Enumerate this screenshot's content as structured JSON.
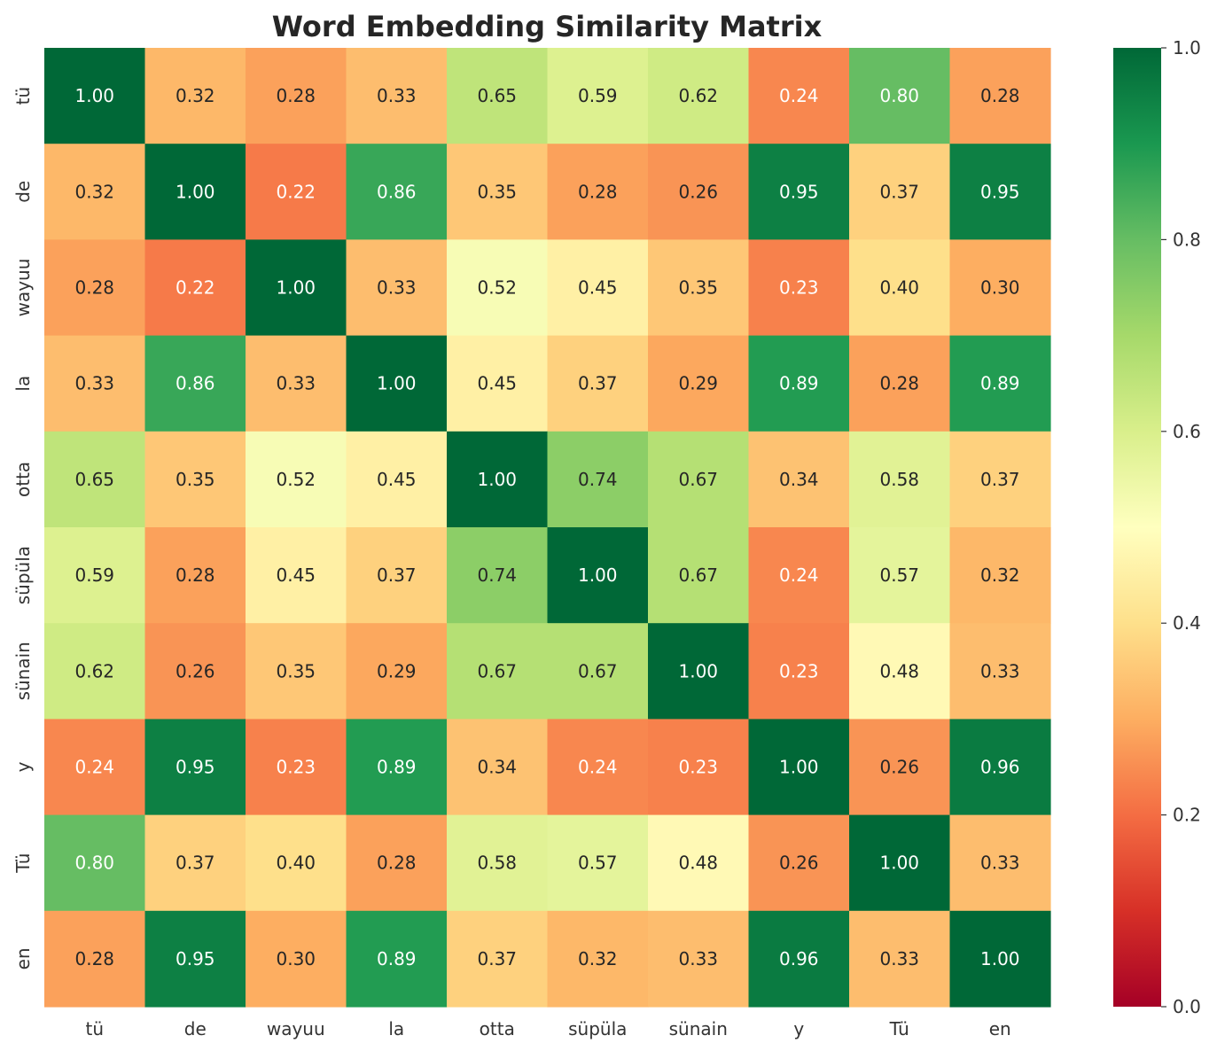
{
  "chart_data": {
    "type": "heatmap",
    "title": "Word Embedding Similarity Matrix",
    "xlabel": "",
    "ylabel": "",
    "x_categories": [
      "tü",
      "de",
      "wayuu",
      "la",
      "otta",
      "süpüla",
      "sünain",
      "y",
      "Tü",
      "en"
    ],
    "y_categories": [
      "tü",
      "de",
      "wayuu",
      "la",
      "otta",
      "süpüla",
      "sünain",
      "y",
      "Tü",
      "en"
    ],
    "values": [
      [
        1.0,
        0.32,
        0.28,
        0.33,
        0.65,
        0.59,
        0.62,
        0.24,
        0.8,
        0.28
      ],
      [
        0.32,
        1.0,
        0.22,
        0.86,
        0.35,
        0.28,
        0.26,
        0.95,
        0.37,
        0.95
      ],
      [
        0.28,
        0.22,
        1.0,
        0.33,
        0.52,
        0.45,
        0.35,
        0.23,
        0.4,
        0.3
      ],
      [
        0.33,
        0.86,
        0.33,
        1.0,
        0.45,
        0.37,
        0.29,
        0.89,
        0.28,
        0.89
      ],
      [
        0.65,
        0.35,
        0.52,
        0.45,
        1.0,
        0.74,
        0.67,
        0.34,
        0.58,
        0.37
      ],
      [
        0.59,
        0.28,
        0.45,
        0.37,
        0.74,
        1.0,
        0.67,
        0.24,
        0.57,
        0.32
      ],
      [
        0.62,
        0.26,
        0.35,
        0.29,
        0.67,
        0.67,
        1.0,
        0.23,
        0.48,
        0.33
      ],
      [
        0.24,
        0.95,
        0.23,
        0.89,
        0.34,
        0.24,
        0.23,
        1.0,
        0.26,
        0.96
      ],
      [
        0.8,
        0.37,
        0.4,
        0.28,
        0.58,
        0.57,
        0.48,
        0.26,
        1.0,
        0.33
      ],
      [
        0.28,
        0.95,
        0.3,
        0.89,
        0.37,
        0.32,
        0.33,
        0.96,
        0.33,
        1.0
      ]
    ],
    "value_format": "2 decimals",
    "colormap": "RdYlGn",
    "color_range": [
      0.0,
      1.0
    ],
    "colorbar_ticks": [
      "0.0",
      "0.2",
      "0.4",
      "0.6",
      "0.8",
      "1.0"
    ],
    "colors": {
      "low": "#a50026",
      "mid": "#ffffbf",
      "high": "#006837",
      "text_dark": "#262626",
      "text_light": "#ffffff"
    },
    "grid": false,
    "legend": "colorbar-right"
  }
}
